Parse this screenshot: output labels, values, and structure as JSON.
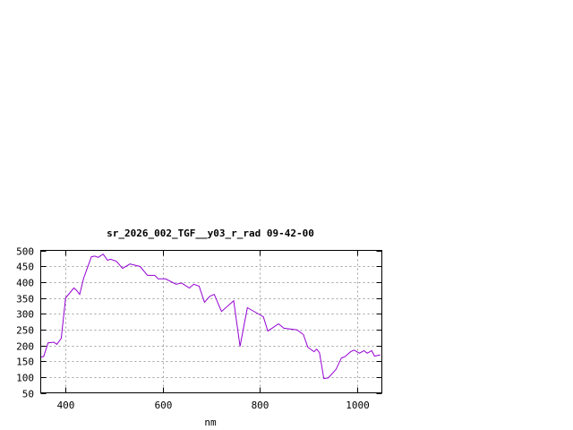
{
  "chart_data": {
    "type": "line",
    "title": "sr_2026_002_TGF__y03_r_rad 09-42-00",
    "xlabel": "nm",
    "ylabel": "",
    "xlim": [
      350,
      1050
    ],
    "ylim": [
      50,
      500
    ],
    "xticks": [
      400,
      600,
      800,
      1000
    ],
    "yticks": [
      50,
      100,
      150,
      200,
      250,
      300,
      350,
      400,
      450,
      500
    ],
    "grid": true,
    "line_color": "#9400d3",
    "series": [
      {
        "x": [
          350,
          356,
          365,
          377,
          383,
          392,
          401,
          418,
          423,
          430,
          438,
          454,
          461,
          468,
          478,
          487,
          493,
          505,
          518,
          533,
          554,
          569,
          584,
          591,
          606,
          628,
          639,
          655,
          664,
          675,
          686,
          697,
          706,
          721,
          746,
          759,
          774,
          797,
          807,
          816,
          838,
          849,
          876,
          889,
          898,
          911,
          916,
          922,
          931,
          940,
          956,
          967,
          974,
          986,
          993,
          1004,
          1013,
          1020,
          1029,
          1035,
          1047
        ],
        "y": [
          163,
          165,
          208,
          210,
          203,
          222,
          350,
          381,
          375,
          361,
          412,
          480,
          482,
          478,
          488,
          469,
          472,
          466,
          443,
          457,
          449,
          421,
          421,
          410,
          410,
          393,
          397,
          381,
          393,
          387,
          336,
          355,
          361,
          307,
          341,
          197,
          319,
          299,
          290,
          245,
          268,
          254,
          249,
          234,
          194,
          180,
          188,
          177,
          95,
          97,
          124,
          160,
          164,
          180,
          185,
          175,
          183,
          175,
          183,
          166,
          170
        ]
      }
    ]
  }
}
